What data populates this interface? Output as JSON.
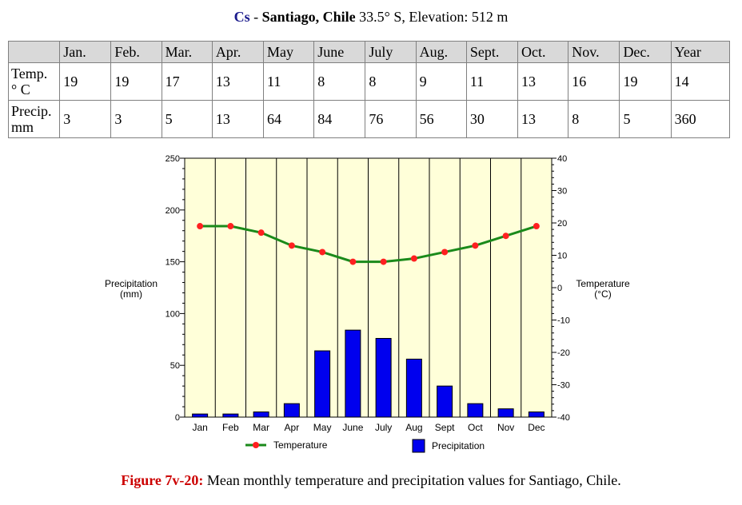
{
  "header": {
    "climate_class": "Cs",
    "separator": "-",
    "city": "Santiago, Chile",
    "latitude": "33.5° S",
    "comma": ",",
    "elevation": "Elevation: 512 m"
  },
  "table": {
    "columns": [
      "",
      "Jan.",
      "Feb.",
      "Mar.",
      "Apr.",
      "May",
      "June",
      "July",
      "Aug.",
      "Sept.",
      "Oct.",
      "Nov.",
      "Dec.",
      "Year"
    ],
    "rows": [
      {
        "label_line1": "Temp.",
        "label_line2": "° C",
        "values": [
          "19",
          "19",
          "17",
          "13",
          "11",
          "8",
          "8",
          "9",
          "11",
          "13",
          "16",
          "19",
          "14"
        ]
      },
      {
        "label_line1": "Precip.",
        "label_line2": "mm",
        "values": [
          "3",
          "3",
          "5",
          "13",
          "64",
          "84",
          "76",
          "56",
          "30",
          "13",
          "8",
          "5",
          "360"
        ]
      }
    ]
  },
  "chart_data": {
    "type": "bar",
    "categories": [
      "Jan",
      "Feb",
      "Mar",
      "Apr",
      "May",
      "June",
      "July",
      "Aug",
      "Sept",
      "Oct",
      "Nov",
      "Dec"
    ],
    "series": [
      {
        "name": "Precipitation",
        "type": "bar",
        "axis": "left",
        "values": [
          3,
          3,
          5,
          13,
          64,
          84,
          76,
          56,
          30,
          13,
          8,
          5
        ],
        "color": "#0000ee"
      },
      {
        "name": "Temperature",
        "type": "line",
        "axis": "right",
        "values": [
          19,
          19,
          17,
          13,
          11,
          8,
          8,
          9,
          11,
          13,
          16,
          19
        ],
        "color": "#1a8a1a",
        "marker_color": "#ff2020"
      }
    ],
    "left_axis": {
      "label_line1": "Precipitation",
      "label_line2": "(mm)",
      "range": [
        0,
        250
      ],
      "ticks": [
        0,
        50,
        100,
        150,
        200,
        250
      ]
    },
    "right_axis": {
      "label_line1": "Temperature",
      "label_line2": "(°C)",
      "range": [
        -40,
        40
      ],
      "ticks": [
        -40,
        -30,
        -20,
        -10,
        0,
        10,
        20,
        30,
        40
      ]
    },
    "legend": {
      "placement": "bottom",
      "items": [
        "Temperature",
        "Precipitation"
      ]
    },
    "grid": "vertical",
    "plot_background": "#ffffd9"
  },
  "caption": {
    "label": "Figure 7v-20:",
    "text": "Mean monthly temperature and precipitation values for Santiago, Chile."
  }
}
